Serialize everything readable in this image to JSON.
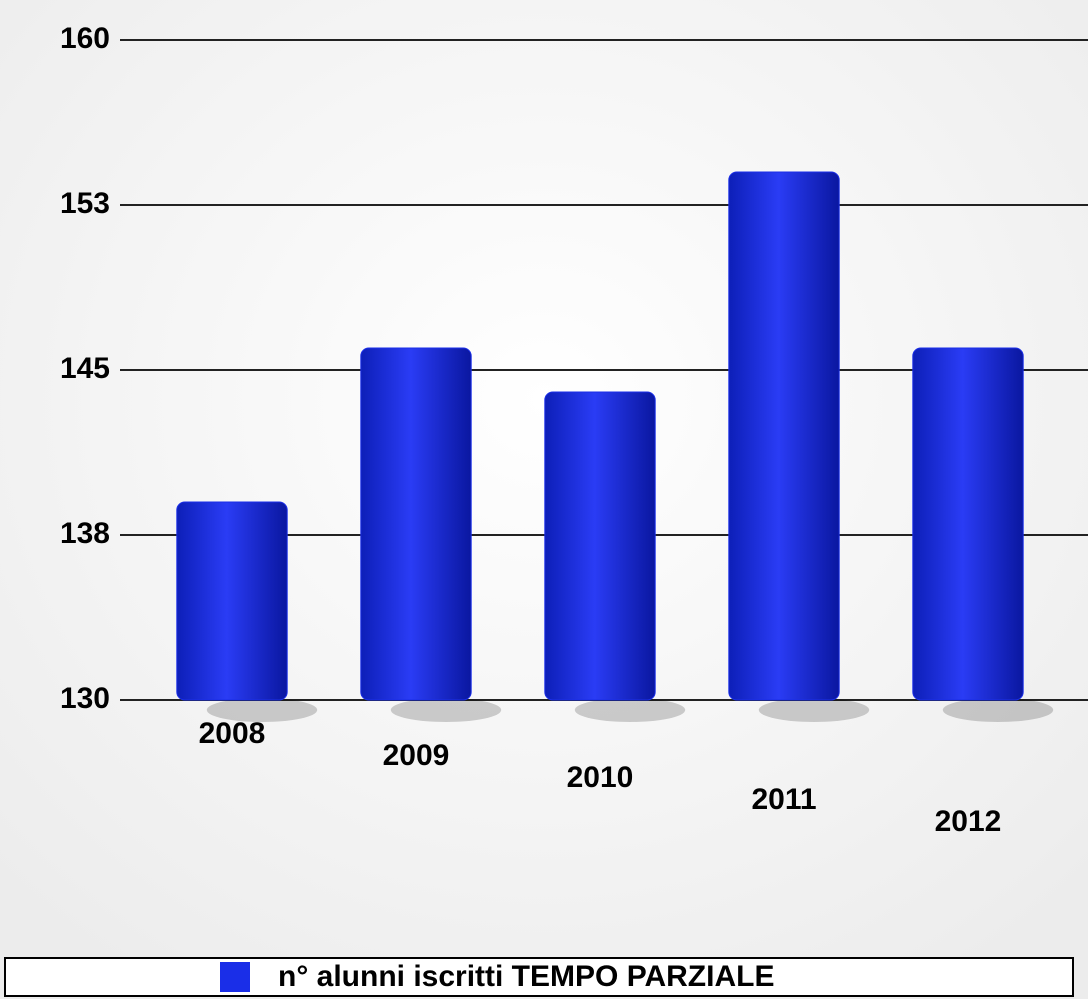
{
  "chart_data": {
    "type": "bar",
    "categories": [
      "2008",
      "2009",
      "2010",
      "2011",
      "2012"
    ],
    "series": [
      {
        "name": "n° alunni iscritti TEMPO PARZIALE",
        "color": "#1a2ee8",
        "values": [
          139,
          146,
          144,
          154,
          146
        ]
      }
    ],
    "ylim": [
      130,
      160
    ],
    "yticks": [
      130,
      {
        "value": 137.5,
        "label": "138"
      },
      145,
      {
        "value": 152.5,
        "label": "153"
      },
      160
    ],
    "grid": true,
    "legend": "bottom"
  }
}
